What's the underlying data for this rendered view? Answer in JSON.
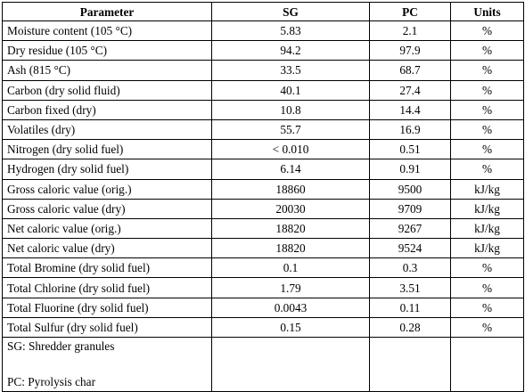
{
  "table": {
    "headers": {
      "parameter": "Parameter",
      "sg": "SG",
      "pc": "PC",
      "units": "Units"
    },
    "rows": [
      {
        "parameter": "Moisture content (105 °C)",
        "sg": "5.83",
        "pc": "2.1",
        "units": "%"
      },
      {
        "parameter": "Dry residue (105 °C)",
        "sg": "94.2",
        "pc": "97.9",
        "units": "%"
      },
      {
        "parameter": "Ash (815 °C)",
        "sg": "33.5",
        "pc": "68.7",
        "units": "%"
      },
      {
        "parameter": "Carbon (dry solid fluid)",
        "sg": "40.1",
        "pc": "27.4",
        "units": "%"
      },
      {
        "parameter": "Carbon fixed (dry)",
        "sg": "10.8",
        "pc": "14.4",
        "units": "%"
      },
      {
        "parameter": "Volatiles (dry)",
        "sg": "55.7",
        "pc": "16.9",
        "units": "%"
      },
      {
        "parameter": "Nitrogen (dry solid fuel)",
        "sg": "< 0.010",
        "pc": "0.51",
        "units": "%"
      },
      {
        "parameter": "Hydrogen (dry solid fuel)",
        "sg": "6.14",
        "pc": "0.91",
        "units": "%"
      },
      {
        "parameter": "Gross caloric value (orig.)",
        "sg": "18860",
        "pc": "9500",
        "units": "kJ/kg"
      },
      {
        "parameter": "Gross caloric value (dry)",
        "sg": "20030",
        "pc": "9709",
        "units": "kJ/kg"
      },
      {
        "parameter": "Net caloric value (orig.)",
        "sg": "18820",
        "pc": "9267",
        "units": "kJ/kg"
      },
      {
        "parameter": "Net caloric value (dry)",
        "sg": "18820",
        "pc": "9524",
        "units": "kJ/kg"
      },
      {
        "parameter": "Total Bromine (dry solid fuel)",
        "sg": "0.1",
        "pc": "0.3",
        "units": "%"
      },
      {
        "parameter": "Total Chlorine (dry solid fuel)",
        "sg": "1.79",
        "pc": "3.51",
        "units": "%"
      },
      {
        "parameter": "Total Fluorine (dry solid fuel)",
        "sg": "0.0043",
        "pc": "0.11",
        "units": "%"
      },
      {
        "parameter": "Total Sulfur (dry solid fuel)",
        "sg": "0.15",
        "pc": "0.28",
        "units": "%"
      }
    ],
    "notes": [
      "SG: Shredder granules",
      "PC: Pyrolysis char"
    ]
  }
}
